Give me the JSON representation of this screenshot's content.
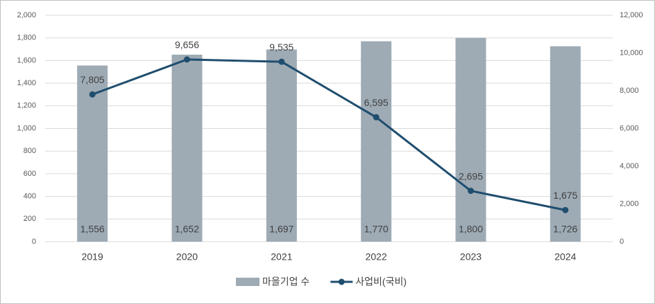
{
  "chart_data": {
    "type": "combo",
    "categories": [
      "2019",
      "2020",
      "2021",
      "2022",
      "2023",
      "2024"
    ],
    "series": [
      {
        "name": "마을기업 수",
        "type": "bar",
        "color": "#9eabb5",
        "values": [
          1556,
          1652,
          1697,
          1770,
          1800,
          1726
        ],
        "value_labels": [
          "1,556",
          "1,652",
          "1,697",
          "1,770",
          "1,800",
          "1,726"
        ]
      },
      {
        "name": "사업비(국비)",
        "type": "line",
        "axis": "y2",
        "color": "#1f4e6e",
        "values": [
          7805,
          9656,
          9535,
          6595,
          2695,
          1675
        ],
        "value_labels": [
          "7,805",
          "9,656",
          "9,535",
          "6,595",
          "2,695",
          "1,675"
        ]
      }
    ],
    "ylim": [
      0,
      2000
    ],
    "yticks": [
      0,
      200,
      400,
      600,
      800,
      {
        "value": 1000,
        "label": "1,000"
      },
      {
        "value": 1200,
        "label": "1,200"
      },
      {
        "value": 1400,
        "label": "1,400"
      },
      {
        "value": 1600,
        "label": "1,600"
      },
      {
        "value": 1800,
        "label": "1,800"
      },
      {
        "value": 2000,
        "label": "2,000"
      }
    ],
    "y2lim": [
      0,
      12000
    ],
    "y2ticks": [
      0,
      {
        "value": 2000,
        "label": "2,000"
      },
      {
        "value": 4000,
        "label": "4,000"
      },
      {
        "value": 6000,
        "label": "6,000"
      },
      {
        "value": 8000,
        "label": "8,000"
      },
      {
        "value": 10000,
        "label": "10,000"
      },
      {
        "value": 12000,
        "label": "12,000"
      }
    ],
    "grid": true,
    "legend": "bottom"
  }
}
